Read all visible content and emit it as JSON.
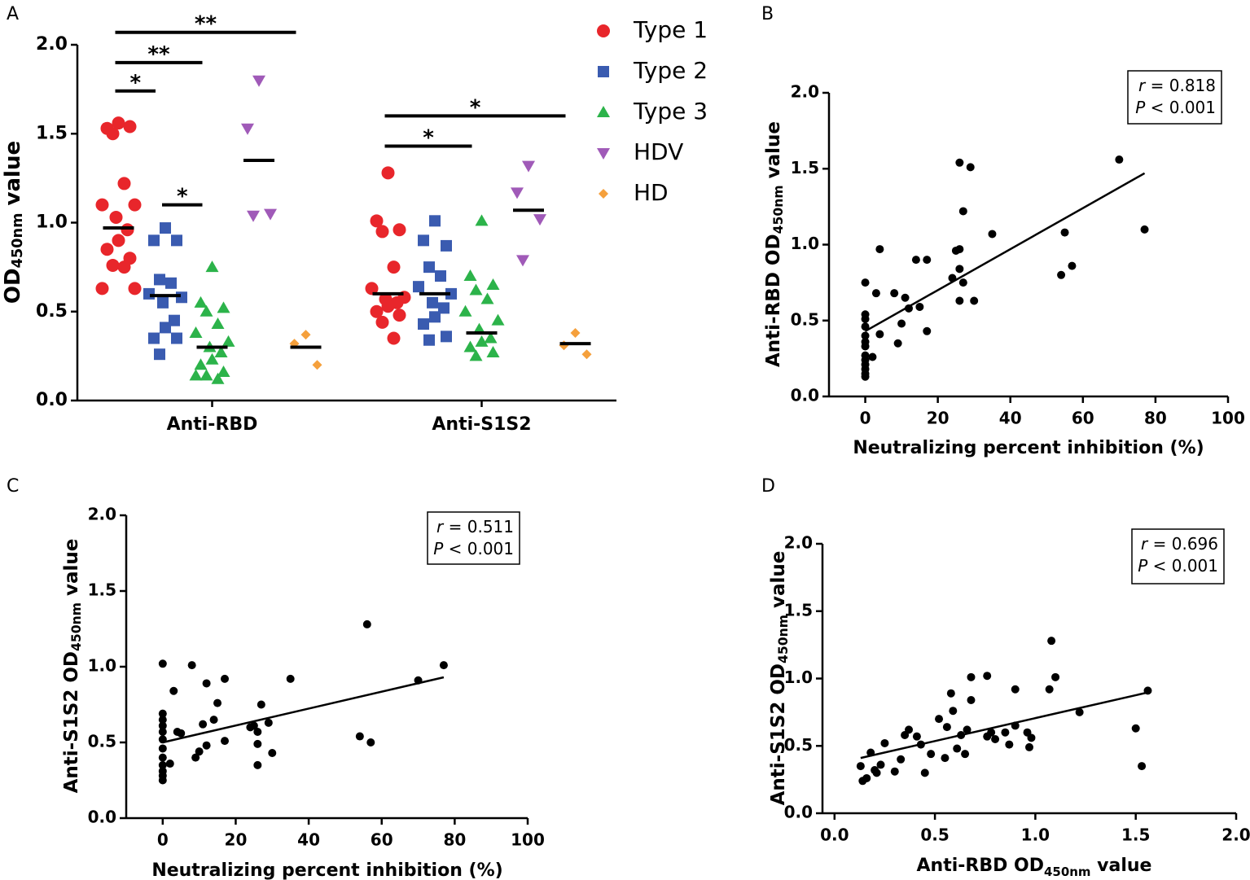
{
  "chart_data": [
    {
      "type": "dot_plot",
      "panel": "A",
      "ylabel": [
        "OD",
        "450nm",
        " value"
      ],
      "categories": [
        "Anti-RBD",
        "Anti-S1S2"
      ],
      "ylim": [
        0,
        2.0
      ],
      "yticks": [
        {
          "value": 0,
          "label": "0.0"
        },
        {
          "value": 0.5,
          "label": "0.5"
        },
        {
          "value": 1.0,
          "label": "1.0"
        },
        {
          "value": 1.5,
          "label": "1.5"
        },
        {
          "value": 2.0,
          "label": "2.0"
        }
      ],
      "series": [
        {
          "name": "Type 1",
          "color": "#e8262b",
          "marker": "circle",
          "values": [
            [
              1.56,
              1.53,
              1.54,
              1.5,
              1.22,
              1.1,
              1.1,
              1.03,
              0.96,
              0.9,
              0.85,
              0.8,
              0.76,
              0.75,
              0.63,
              0.63
            ],
            [
              1.28,
              1.01,
              0.96,
              0.95,
              0.75,
              0.63,
              0.58,
              0.57,
              0.55,
              0.53,
              0.5,
              0.48,
              0.44,
              0.35
            ]
          ],
          "medians": [
            0.97,
            0.6
          ]
        },
        {
          "name": "Type 2",
          "color": "#3a5bb0",
          "marker": "square",
          "values": [
            [
              0.97,
              0.9,
              0.9,
              0.68,
              0.66,
              0.6,
              0.58,
              0.55,
              0.45,
              0.41,
              0.35,
              0.35,
              0.26
            ],
            [
              1.01,
              0.9,
              0.87,
              0.75,
              0.7,
              0.64,
              0.6,
              0.55,
              0.52,
              0.47,
              0.43,
              0.36,
              0.34
            ]
          ],
          "medians": [
            0.59,
            0.6
          ]
        },
        {
          "name": "Type 3",
          "color": "#2cb34a",
          "marker": "triangle-up",
          "values": [
            [
              0.75,
              0.55,
              0.52,
              0.5,
              0.43,
              0.38,
              0.33,
              0.3,
              0.27,
              0.23,
              0.2,
              0.16,
              0.14,
              0.12,
              0.14
            ],
            [
              1.01,
              0.7,
              0.65,
              0.62,
              0.57,
              0.5,
              0.45,
              0.4,
              0.35,
              0.33,
              0.3,
              0.27,
              0.25
            ]
          ],
          "medians": [
            0.3,
            0.38
          ]
        },
        {
          "name": "HDV",
          "color": "#a05ab8",
          "marker": "triangle-down",
          "values": [
            [
              1.8,
              1.53,
              1.05,
              1.04
            ],
            [
              1.32,
              1.17,
              1.02,
              0.79
            ]
          ],
          "medians": [
            1.35,
            1.07
          ]
        },
        {
          "name": "HD",
          "color": "#f5a03c",
          "marker": "diamond",
          "values": [
            [
              0.37,
              0.32,
              0.2
            ],
            [
              0.38,
              0.31,
              0.26
            ]
          ],
          "medians": [
            0.3,
            0.32
          ]
        }
      ],
      "significance": [
        {
          "label": "**",
          "group": 0,
          "from": 0,
          "to": 4,
          "y": 2.07
        },
        {
          "label": "**",
          "group": 0,
          "from": 0,
          "to": 2,
          "y": 1.9
        },
        {
          "label": "*",
          "group": 0,
          "from": 0,
          "to": 1,
          "y": 1.74
        },
        {
          "label": "*",
          "group": 0,
          "from": 1,
          "to": 2,
          "y": 1.1
        },
        {
          "label": "*",
          "group": 1,
          "from": 0,
          "to": 4,
          "y": 1.6
        },
        {
          "label": "*",
          "group": 1,
          "from": 0,
          "to": 2,
          "y": 1.43
        }
      ]
    },
    {
      "type": "scatter",
      "panel": "B",
      "ylabel": [
        "Anti-RBD OD",
        "450nm",
        " value"
      ],
      "xlabel": "Neutralizing percent inhibition (%)",
      "xlim": [
        -10,
        100
      ],
      "xticks": [
        0,
        20,
        40,
        60,
        80,
        100
      ],
      "ylim": [
        0,
        2.0
      ],
      "yticks": [
        {
          "value": 0,
          "label": "0.0"
        },
        {
          "value": 0.5,
          "label": "0.5"
        },
        {
          "value": 1.0,
          "label": "1.0"
        },
        {
          "value": 1.5,
          "label": "1.5"
        },
        {
          "value": 2.0,
          "label": "2.0"
        }
      ],
      "annotation": [
        "r = 0.818",
        "P < 0.001"
      ],
      "color": "#000000",
      "x": [
        0,
        0,
        0,
        0,
        0,
        0,
        0,
        0,
        0,
        0,
        0,
        0,
        0,
        2,
        3,
        4,
        4,
        8,
        9,
        10,
        11,
        12,
        14,
        15,
        17,
        17,
        24,
        25,
        26,
        26,
        26,
        26,
        27,
        27,
        29,
        30,
        35,
        54,
        55,
        57,
        70,
        77
      ],
      "y": [
        0.75,
        0.54,
        0.51,
        0.46,
        0.4,
        0.36,
        0.33,
        0.27,
        0.24,
        0.21,
        0.18,
        0.15,
        0.13,
        0.26,
        0.68,
        0.41,
        0.97,
        0.68,
        0.35,
        0.48,
        0.65,
        0.58,
        0.9,
        0.59,
        0.9,
        0.43,
        0.78,
        0.96,
        0.63,
        0.84,
        1.54,
        0.97,
        0.75,
        1.22,
        1.51,
        0.63,
        1.07,
        0.8,
        1.08,
        0.86,
        1.56,
        1.1
      ],
      "fit": {
        "x": [
          0,
          77
        ],
        "y": [
          0.43,
          1.47
        ]
      }
    },
    {
      "type": "scatter",
      "panel": "C",
      "ylabel": [
        "Anti-S1S2 OD",
        "450nm",
        " value"
      ],
      "xlabel": "Neutralizing percent inhibition (%)",
      "xlim": [
        -10,
        100
      ],
      "xticks": [
        0,
        20,
        40,
        60,
        80,
        100
      ],
      "ylim": [
        0,
        2.0
      ],
      "yticks": [
        {
          "value": 0,
          "label": "0.0"
        },
        {
          "value": 0.5,
          "label": "0.5"
        },
        {
          "value": 1.0,
          "label": "1.0"
        },
        {
          "value": 1.5,
          "label": "1.5"
        },
        {
          "value": 2.0,
          "label": "2.0"
        }
      ],
      "annotation": [
        "r = 0.511",
        "P < 0.001"
      ],
      "color": "#000000",
      "x": [
        0,
        0,
        0,
        0,
        0,
        0,
        0,
        0,
        0,
        0,
        0,
        0,
        2,
        3,
        4,
        5,
        8,
        9,
        10,
        11,
        12,
        12,
        14,
        15,
        17,
        17,
        24,
        25,
        26,
        26,
        26,
        27,
        29,
        30,
        35,
        54,
        56,
        57,
        70,
        77
      ],
      "y": [
        1.02,
        0.69,
        0.65,
        0.61,
        0.57,
        0.52,
        0.46,
        0.4,
        0.35,
        0.31,
        0.28,
        0.25,
        0.36,
        0.84,
        0.57,
        0.56,
        1.01,
        0.4,
        0.44,
        0.62,
        0.89,
        0.48,
        0.65,
        0.76,
        0.92,
        0.51,
        0.6,
        0.61,
        0.57,
        0.49,
        0.35,
        0.75,
        0.63,
        0.43,
        0.92,
        0.54,
        1.28,
        0.5,
        0.91,
        1.01
      ],
      "fit": {
        "x": [
          0,
          77
        ],
        "y": [
          0.5,
          0.93
        ]
      }
    },
    {
      "type": "scatter",
      "panel": "D",
      "ylabel": [
        "Anti-S1S2 OD",
        "450nm",
        " value"
      ],
      "xlabel": [
        "Anti-RBD OD",
        "450nm",
        " value"
      ],
      "xlim": [
        -0.06,
        2.0
      ],
      "xticks": [
        {
          "value": 0,
          "label": "0.0"
        },
        {
          "value": 0.5,
          "label": "0.5"
        },
        {
          "value": 1.0,
          "label": "1.0"
        },
        {
          "value": 1.5,
          "label": "1.5"
        },
        {
          "value": 2.0,
          "label": "2.0"
        }
      ],
      "ylim": [
        0,
        2.0
      ],
      "yticks": [
        {
          "value": 0,
          "label": "0.0"
        },
        {
          "value": 0.5,
          "label": "0.5"
        },
        {
          "value": 1.0,
          "label": "1.0"
        },
        {
          "value": 1.5,
          "label": "1.5"
        },
        {
          "value": 2.0,
          "label": "2.0"
        }
      ],
      "annotation": [
        "r = 0.696",
        "P < 0.001"
      ],
      "color": "#000000",
      "x": [
        0.13,
        0.14,
        0.16,
        0.18,
        0.2,
        0.21,
        0.23,
        0.25,
        0.3,
        0.33,
        0.35,
        0.37,
        0.41,
        0.43,
        0.45,
        0.48,
        0.52,
        0.55,
        0.56,
        0.58,
        0.59,
        0.61,
        0.63,
        0.65,
        0.66,
        0.68,
        0.68,
        0.76,
        0.76,
        0.78,
        0.8,
        0.85,
        0.87,
        0.9,
        0.9,
        0.96,
        0.97,
        0.98,
        1.07,
        1.08,
        1.1,
        1.22,
        1.5,
        1.53,
        1.56
      ],
      "y": [
        0.35,
        0.24,
        0.26,
        0.45,
        0.32,
        0.3,
        0.36,
        0.52,
        0.31,
        0.4,
        0.58,
        0.62,
        0.57,
        0.51,
        0.3,
        0.44,
        0.7,
        0.41,
        0.64,
        0.89,
        0.76,
        0.48,
        0.58,
        0.44,
        0.62,
        1.01,
        0.84,
        1.02,
        0.57,
        0.6,
        0.55,
        0.6,
        0.51,
        0.92,
        0.65,
        0.6,
        0.49,
        0.56,
        0.92,
        1.28,
        1.01,
        0.75,
        0.63,
        0.35,
        0.91
      ],
      "fit": {
        "x": [
          0.13,
          1.57
        ],
        "y": [
          0.41,
          0.9
        ]
      }
    }
  ]
}
